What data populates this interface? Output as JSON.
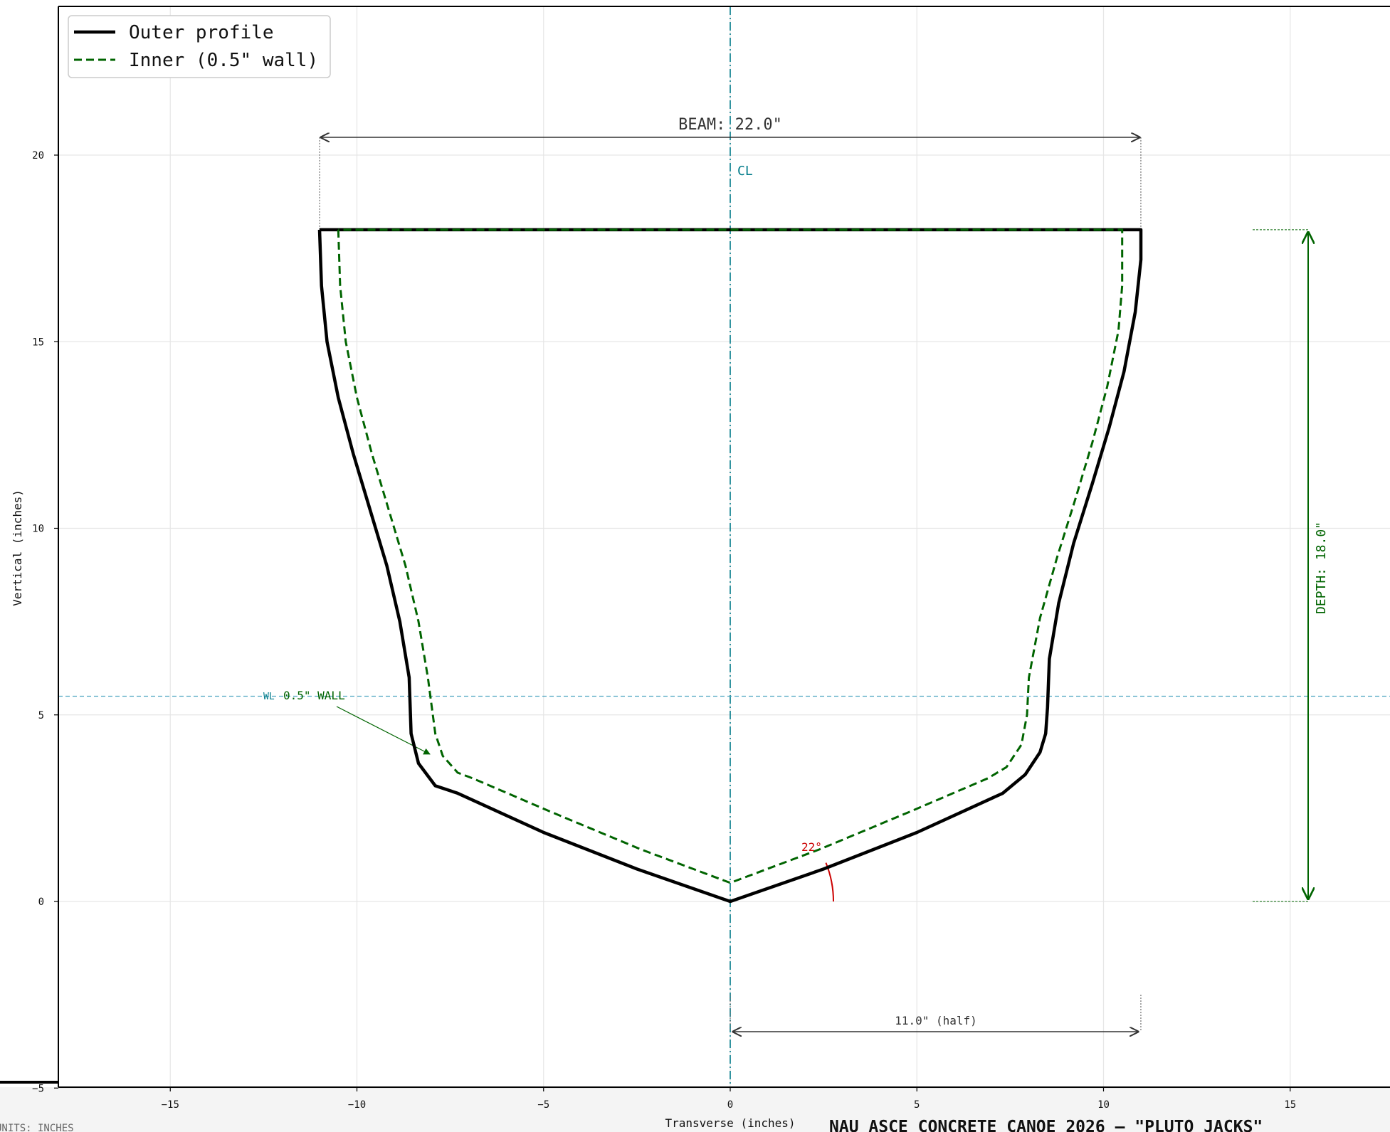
{
  "chart_data": {
    "type": "line",
    "title": "NAU ASCE CONCRETE CANOE 2026 — \"PLUTO JACKS\"",
    "units_note": "UNITS: INCHES",
    "xlabel": "Transverse (inches)",
    "ylabel": "Vertical (inches)",
    "xlim": [
      -18,
      17.2
    ],
    "ylim": [
      -5,
      24.2
    ],
    "xticks": [
      -15,
      -10,
      -5,
      0,
      5,
      10,
      15
    ],
    "yticks": [
      -5,
      0,
      5,
      10,
      15,
      20
    ],
    "grid": true,
    "legend_position": "top-left",
    "series": [
      {
        "name": "Outer profile",
        "style": "solid",
        "color": "#000000",
        "points": [
          [
            -11,
            18
          ],
          [
            -10.95,
            16.5
          ],
          [
            -10.8,
            15
          ],
          [
            -10.5,
            13.5
          ],
          [
            -10.1,
            12
          ],
          [
            -9.65,
            10.5
          ],
          [
            -9.2,
            9
          ],
          [
            -8.85,
            7.5
          ],
          [
            -8.6,
            6
          ],
          [
            -8.55,
            4.5
          ],
          [
            -8.35,
            3.7
          ],
          [
            -7.9,
            3.1
          ],
          [
            -7.3,
            2.9
          ],
          [
            -5,
            1.85
          ],
          [
            -2.5,
            0.87
          ],
          [
            0,
            0
          ],
          [
            2.5,
            0.87
          ],
          [
            5,
            1.85
          ],
          [
            7.3,
            2.9
          ],
          [
            7.9,
            3.4
          ],
          [
            8.3,
            4
          ],
          [
            8.45,
            4.5
          ],
          [
            8.5,
            5.2
          ],
          [
            8.55,
            6.5
          ],
          [
            8.8,
            8
          ],
          [
            9.2,
            9.6
          ],
          [
            9.7,
            11.2
          ],
          [
            10.15,
            12.7
          ],
          [
            10.55,
            14.2
          ],
          [
            10.85,
            15.8
          ],
          [
            11,
            17.2
          ],
          [
            11,
            18
          ],
          [
            -11,
            18
          ]
        ]
      },
      {
        "name": "Inner (0.5\" wall)",
        "style": "dashed",
        "color": "#006400",
        "points": [
          [
            -10.5,
            18
          ],
          [
            -10.45,
            16.5
          ],
          [
            -10.3,
            15
          ],
          [
            -10.0,
            13.5
          ],
          [
            -9.6,
            12
          ],
          [
            -9.15,
            10.5
          ],
          [
            -8.7,
            9
          ],
          [
            -8.35,
            7.5
          ],
          [
            -8.1,
            6
          ],
          [
            -7.9,
            4.5
          ],
          [
            -7.7,
            3.9
          ],
          [
            -7.3,
            3.45
          ],
          [
            -6.9,
            3.3
          ],
          [
            -4.8,
            2.4
          ],
          [
            -2.4,
            1.4
          ],
          [
            0,
            0.5
          ],
          [
            2.4,
            1.4
          ],
          [
            4.8,
            2.4
          ],
          [
            6.9,
            3.3
          ],
          [
            7.4,
            3.6
          ],
          [
            7.8,
            4.2
          ],
          [
            7.95,
            5.0
          ],
          [
            8.0,
            6.0
          ],
          [
            8.3,
            7.6
          ],
          [
            8.75,
            9.2
          ],
          [
            9.25,
            10.8
          ],
          [
            9.7,
            12.3
          ],
          [
            10.1,
            13.8
          ],
          [
            10.4,
            15.3
          ],
          [
            10.5,
            16.5
          ],
          [
            10.5,
            18
          ],
          [
            -10.5,
            18
          ]
        ]
      }
    ],
    "annotations": {
      "beam_label": "BEAM: 22.0\"",
      "beam_value": 22.0,
      "centerline_label": "CL",
      "depth_label": "DEPTH: 18.0\"",
      "depth_value": 18.0,
      "waterline_label": "WL",
      "waterline_y": 5.5,
      "wall_label": "0.5\" WALL",
      "deadrise_label": "22°",
      "deadrise_angle": 22,
      "half_beam_label": "11.0\" (half)",
      "half_beam_value": 11.0
    },
    "colors": {
      "outer": "#000000",
      "inner": "#006400",
      "centerline": "#007b8a",
      "waterline": "#4aa3c0",
      "depth": "#006400",
      "angle": "#cc0000",
      "dimension": "#333333",
      "grid": "#e6e6e6"
    }
  }
}
